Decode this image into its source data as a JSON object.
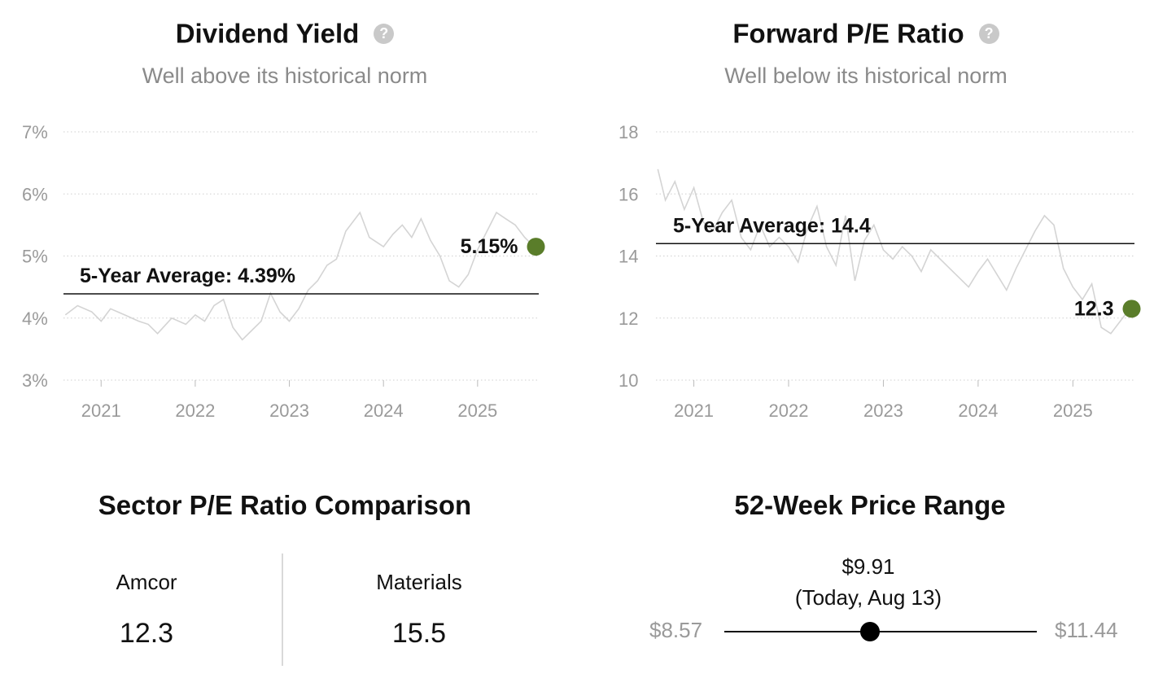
{
  "dividend_panel": {
    "title": "Dividend Yield",
    "subtitle": "Well above its historical norm",
    "help_icon": "question-circle-icon",
    "current_label": "5.15%",
    "average_label": "5-Year Average: 4.39%",
    "current_dot_color": "#5a7d2a",
    "line_color": "#d4d4d4"
  },
  "pe_panel": {
    "title": "Forward P/E Ratio",
    "subtitle": "Well below its historical norm",
    "help_icon": "question-circle-icon",
    "current_label": "12.3",
    "average_label": "5-Year Average: 14.4",
    "current_dot_color": "#5a7d2a",
    "line_color": "#d4d4d4"
  },
  "sector": {
    "title": "Sector P/E Ratio Comparison",
    "items": [
      {
        "name": "Amcor",
        "value": "12.3"
      },
      {
        "name": "Materials",
        "value": "15.5"
      }
    ]
  },
  "price_range": {
    "title": "52-Week Price Range",
    "low": "$8.57",
    "high": "$11.44",
    "current_price": "$9.91",
    "current_note": "(Today, Aug 13)",
    "current_value": 9.91,
    "low_value": 8.57,
    "high_value": 11.44
  },
  "chart_data": [
    {
      "type": "line",
      "title": "Dividend Yield",
      "x_ticks": [
        "2021",
        "2022",
        "2023",
        "2024",
        "2025"
      ],
      "y_ticks": [
        "7%",
        "6%",
        "5%",
        "4%",
        "3%"
      ],
      "y_tick_values": [
        7,
        6,
        5,
        4,
        3
      ],
      "ylim": [
        3,
        7
      ],
      "xlim": [
        2020.6,
        2025.65
      ],
      "grid": true,
      "average": 4.39,
      "current": {
        "x": 2025.62,
        "y": 5.15
      },
      "series": [
        {
          "x": [
            2020.62,
            2020.75,
            2020.9,
            2021.0,
            2021.1,
            2021.25,
            2021.4,
            2021.5,
            2021.6,
            2021.75,
            2021.9,
            2022.0,
            2022.1,
            2022.2,
            2022.3,
            2022.4,
            2022.5,
            2022.6,
            2022.7,
            2022.8,
            2022.9,
            2023.0,
            2023.1,
            2023.2,
            2023.3,
            2023.4,
            2023.5,
            2023.6,
            2023.75,
            2023.85,
            2024.0,
            2024.1,
            2024.2,
            2024.3,
            2024.4,
            2024.5,
            2024.6,
            2024.7,
            2024.8,
            2024.9,
            2025.0,
            2025.1,
            2025.2,
            2025.3,
            2025.4,
            2025.5,
            2025.6
          ],
          "y": [
            4.05,
            4.2,
            4.1,
            3.95,
            4.15,
            4.05,
            3.95,
            3.9,
            3.75,
            4.0,
            3.9,
            4.05,
            3.95,
            4.2,
            4.3,
            3.85,
            3.65,
            3.8,
            3.95,
            4.4,
            4.1,
            3.95,
            4.15,
            4.45,
            4.6,
            4.85,
            4.95,
            5.4,
            5.7,
            5.3,
            5.15,
            5.35,
            5.5,
            5.3,
            5.6,
            5.25,
            5.0,
            4.6,
            4.5,
            4.7,
            5.1,
            5.4,
            5.7,
            5.6,
            5.5,
            5.3,
            5.15
          ]
        }
      ]
    },
    {
      "type": "line",
      "title": "Forward P/E Ratio",
      "x_ticks": [
        "2021",
        "2022",
        "2023",
        "2024",
        "2025"
      ],
      "y_ticks": [
        "18",
        "16",
        "14",
        "12",
        "10"
      ],
      "y_tick_values": [
        18,
        16,
        14,
        12,
        10
      ],
      "ylim": [
        10,
        18
      ],
      "xlim": [
        2020.6,
        2025.65
      ],
      "grid": true,
      "average": 14.4,
      "current": {
        "x": 2025.62,
        "y": 12.3
      },
      "series": [
        {
          "x": [
            2020.62,
            2020.7,
            2020.8,
            2020.9,
            2021.0,
            2021.1,
            2021.2,
            2021.3,
            2021.4,
            2021.5,
            2021.6,
            2021.7,
            2021.8,
            2021.9,
            2022.0,
            2022.1,
            2022.2,
            2022.3,
            2022.4,
            2022.5,
            2022.6,
            2022.7,
            2022.8,
            2022.9,
            2023.0,
            2023.1,
            2023.2,
            2023.3,
            2023.4,
            2023.5,
            2023.6,
            2023.7,
            2023.8,
            2023.9,
            2024.0,
            2024.1,
            2024.2,
            2024.3,
            2024.4,
            2024.5,
            2024.6,
            2024.7,
            2024.8,
            2024.9,
            2025.0,
            2025.1,
            2025.2,
            2025.3,
            2025.4,
            2025.5,
            2025.6
          ],
          "y": [
            16.8,
            15.8,
            16.4,
            15.5,
            16.2,
            15.1,
            14.8,
            15.4,
            15.8,
            14.6,
            14.2,
            15.0,
            14.3,
            14.6,
            14.3,
            13.8,
            14.9,
            15.6,
            14.3,
            13.7,
            15.3,
            13.2,
            14.5,
            15.0,
            14.2,
            13.9,
            14.3,
            14.0,
            13.5,
            14.2,
            13.9,
            13.6,
            13.3,
            13.0,
            13.5,
            13.9,
            13.4,
            12.9,
            13.6,
            14.2,
            14.8,
            15.3,
            15.0,
            13.6,
            13.0,
            12.6,
            13.1,
            11.7,
            11.5,
            11.9,
            12.3
          ]
        }
      ]
    }
  ]
}
